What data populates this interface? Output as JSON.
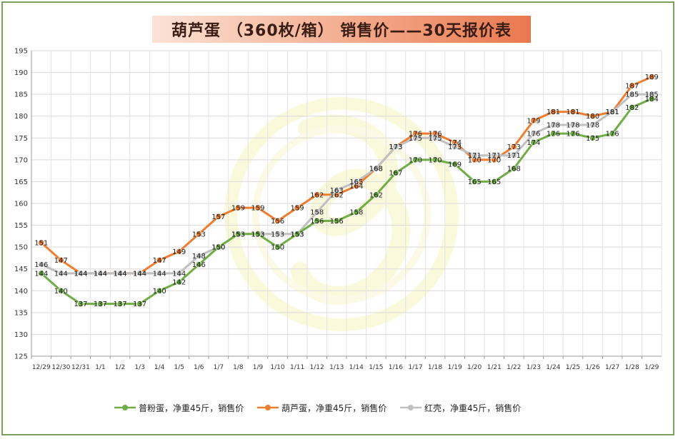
{
  "chart_data": {
    "type": "line",
    "title": "葫芦蛋 （360枚/箱） 销售价——30天报价表",
    "xlabel": "",
    "ylabel": "",
    "ylim": [
      125,
      195
    ],
    "yticks": [
      125,
      130,
      135,
      140,
      145,
      150,
      155,
      160,
      165,
      170,
      175,
      180,
      185,
      190,
      195
    ],
    "grid": true,
    "legend_position": "bottom",
    "categories": [
      "12/29",
      "12/30",
      "12/31",
      "1/1",
      "1/2",
      "1/3",
      "1/4",
      "1/5",
      "1/6",
      "1/7",
      "1/8",
      "1/9",
      "1/10",
      "1/11",
      "1/12",
      "1/13",
      "1/14",
      "1/15",
      "1/16",
      "1/17",
      "1/18",
      "1/19",
      "1/20",
      "1/21",
      "1/22",
      "1/23",
      "1/24",
      "1/25",
      "1/26",
      "1/27",
      "1/28",
      "1/29"
    ],
    "series": [
      {
        "name": "普粉蛋，净重45斤，销售价",
        "color": "#70ad47",
        "values": [
          144,
          140,
          137,
          137,
          137,
          137,
          140,
          142,
          146,
          150,
          153,
          153,
          150,
          153,
          156,
          156,
          158,
          162,
          167,
          170,
          170,
          169,
          165,
          165,
          168,
          174,
          176,
          176,
          175,
          176,
          182,
          184
        ]
      },
      {
        "name": "葫芦蛋，净重45斤，销售价",
        "color": "#ed7d31",
        "values": [
          151,
          147,
          144,
          144,
          144,
          144,
          147,
          149,
          153,
          157,
          159,
          159,
          156,
          159,
          162,
          162,
          164,
          168,
          173,
          176,
          176,
          174,
          170,
          170,
          173,
          179,
          181,
          181,
          180,
          181,
          187,
          189
        ]
      },
      {
        "name": "红壳，净重45斤，销售价",
        "color": "#c0c0c0",
        "values": [
          146,
          144,
          144,
          144,
          144,
          144,
          144,
          144,
          148,
          150,
          153,
          153,
          153,
          153,
          158,
          163,
          165,
          168,
          173,
          175,
          175,
          173,
          171,
          171,
          171,
          176,
          178,
          178,
          178,
          181,
          185,
          185
        ]
      }
    ]
  }
}
